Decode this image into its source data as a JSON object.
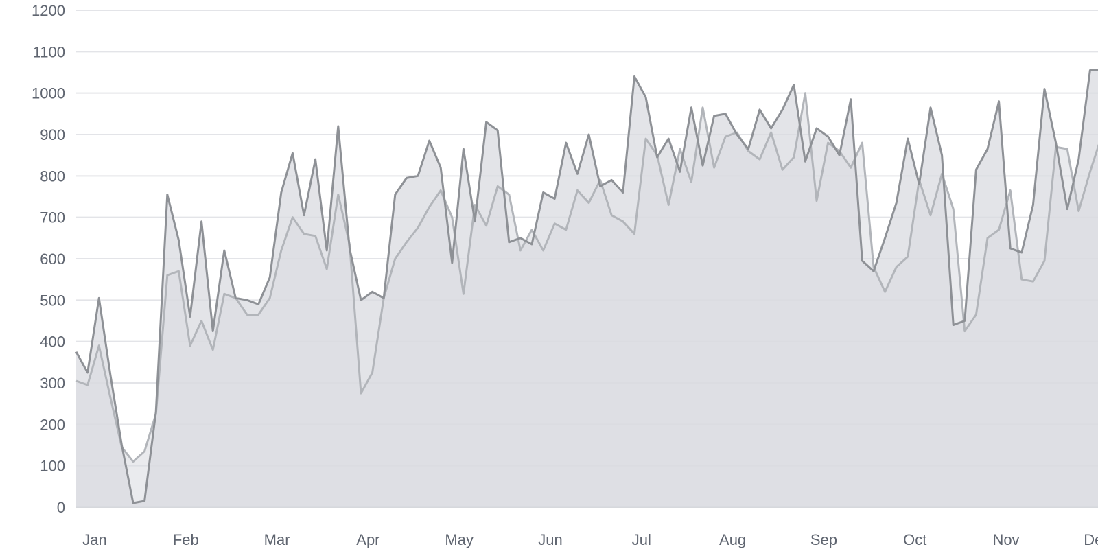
{
  "chart_data": {
    "type": "area",
    "title": "",
    "xlabel": "",
    "ylabel": "",
    "ylim": [
      0,
      1200
    ],
    "y_ticks": [
      0,
      100,
      200,
      300,
      400,
      500,
      600,
      700,
      800,
      900,
      1000,
      1100,
      1200
    ],
    "x_tick_labels": [
      "Jan",
      "Feb",
      "Mar",
      "Apr",
      "May",
      "Jun",
      "Jul",
      "Aug",
      "Sep",
      "Oct",
      "Nov",
      "Dec"
    ],
    "points_per_month": 8,
    "grid": true,
    "legend": "none",
    "colors": {
      "series_a_line": "#8e9196",
      "series_b_line": "#b2b5ba",
      "area_fill": "#d9dbe0",
      "grid": "#e3e4e8",
      "axis": "#d6d8dc"
    },
    "series": [
      {
        "values": [
          375,
          325,
          505,
          320,
          150,
          10,
          15,
          230,
          755,
          645,
          460,
          690,
          425,
          620,
          505,
          500,
          490,
          555,
          760,
          855,
          705,
          840,
          620,
          920,
          625,
          500,
          520,
          505,
          755,
          795,
          800,
          885,
          820,
          590,
          865,
          690,
          930,
          910,
          640,
          650,
          635,
          760,
          745,
          880,
          805,
          900,
          775,
          790,
          760,
          1040,
          990,
          845,
          890,
          810,
          965,
          825,
          945,
          950,
          900,
          865,
          960,
          915,
          960,
          1020,
          835,
          915,
          895,
          850,
          985,
          595,
          570,
          650,
          735,
          890,
          780,
          965,
          850,
          440,
          450,
          815,
          865,
          980,
          625,
          615,
          730,
          1010,
          880,
          720,
          840,
          1055,
          1055,
          1055
        ]
      },
      {
        "values": [
          305,
          295,
          390,
          265,
          145,
          110,
          135,
          225,
          560,
          570,
          390,
          450,
          380,
          515,
          505,
          465,
          465,
          505,
          620,
          700,
          660,
          655,
          575,
          755,
          635,
          275,
          325,
          505,
          600,
          640,
          675,
          725,
          765,
          700,
          515,
          730,
          680,
          775,
          755,
          620,
          670,
          620,
          685,
          670,
          765,
          735,
          790,
          705,
          690,
          660,
          890,
          850,
          730,
          865,
          785,
          965,
          820,
          895,
          905,
          860,
          840,
          905,
          815,
          845,
          1000,
          740,
          880,
          860,
          820,
          880,
          580,
          520,
          580,
          605,
          790,
          705,
          805,
          720,
          425,
          465,
          650,
          670,
          765,
          550,
          545,
          595,
          870,
          865,
          715,
          810,
          895,
          895
        ]
      }
    ]
  }
}
